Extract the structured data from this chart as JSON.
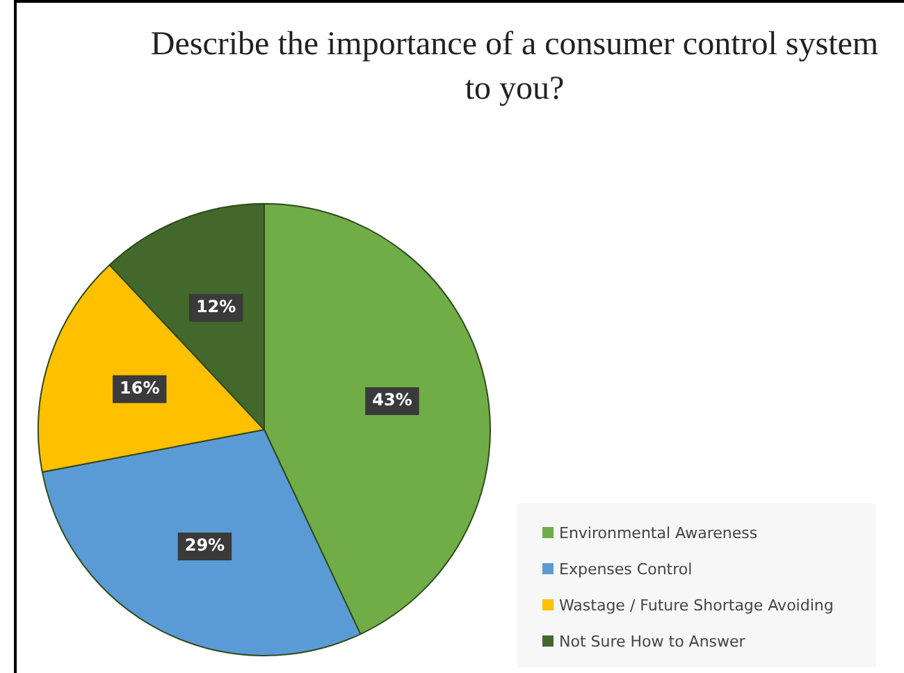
{
  "chart_data": {
    "type": "pie",
    "title": "Describe the importance of a consumer control system to you?",
    "categories": [
      "Environmental Awareness",
      "Expenses Control",
      "Wastage / Future Shortage Avoiding",
      "Not Sure How to Answer"
    ],
    "values": [
      43,
      29,
      16,
      12
    ],
    "colors": [
      "#70ad47",
      "#5b9bd5",
      "#ffc000",
      "#43682b"
    ],
    "value_labels": [
      "43%",
      "29%",
      "16%",
      "12%"
    ],
    "legend": "bottom right"
  }
}
